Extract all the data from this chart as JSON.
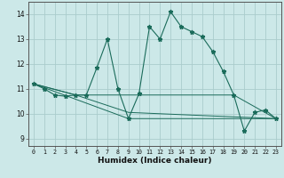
{
  "title": "",
  "xlabel": "Humidex (Indice chaleur)",
  "background_color": "#cce8e8",
  "grid_color": "#aacccc",
  "line_color": "#1a6b5a",
  "xlim": [
    -0.5,
    23.5
  ],
  "ylim": [
    8.7,
    14.5
  ],
  "yticks": [
    9,
    10,
    11,
    12,
    13,
    14
  ],
  "xticks": [
    0,
    1,
    2,
    3,
    4,
    5,
    6,
    7,
    8,
    9,
    10,
    11,
    12,
    13,
    14,
    15,
    16,
    17,
    18,
    19,
    20,
    21,
    22,
    23
  ],
  "line1_x": [
    0,
    1,
    2,
    3,
    4,
    5,
    6,
    7,
    8,
    9,
    10,
    11,
    12,
    13,
    14,
    15,
    16,
    17,
    18,
    19,
    20,
    21,
    22,
    23
  ],
  "line1_y": [
    11.2,
    11.0,
    10.75,
    10.7,
    10.75,
    10.75,
    11.85,
    13.0,
    11.0,
    9.8,
    10.8,
    13.5,
    13.0,
    14.1,
    13.5,
    13.3,
    13.1,
    12.5,
    11.7,
    10.75,
    9.3,
    10.05,
    10.15,
    9.8
  ],
  "line2_x": [
    0,
    4,
    10,
    19,
    23
  ],
  "line2_y": [
    11.2,
    10.75,
    10.75,
    10.75,
    9.8
  ],
  "line3_x": [
    0,
    4,
    9,
    23
  ],
  "line3_y": [
    11.2,
    10.75,
    10.05,
    9.8
  ],
  "line4_x": [
    0,
    9,
    23
  ],
  "line4_y": [
    11.2,
    9.8,
    9.8
  ]
}
